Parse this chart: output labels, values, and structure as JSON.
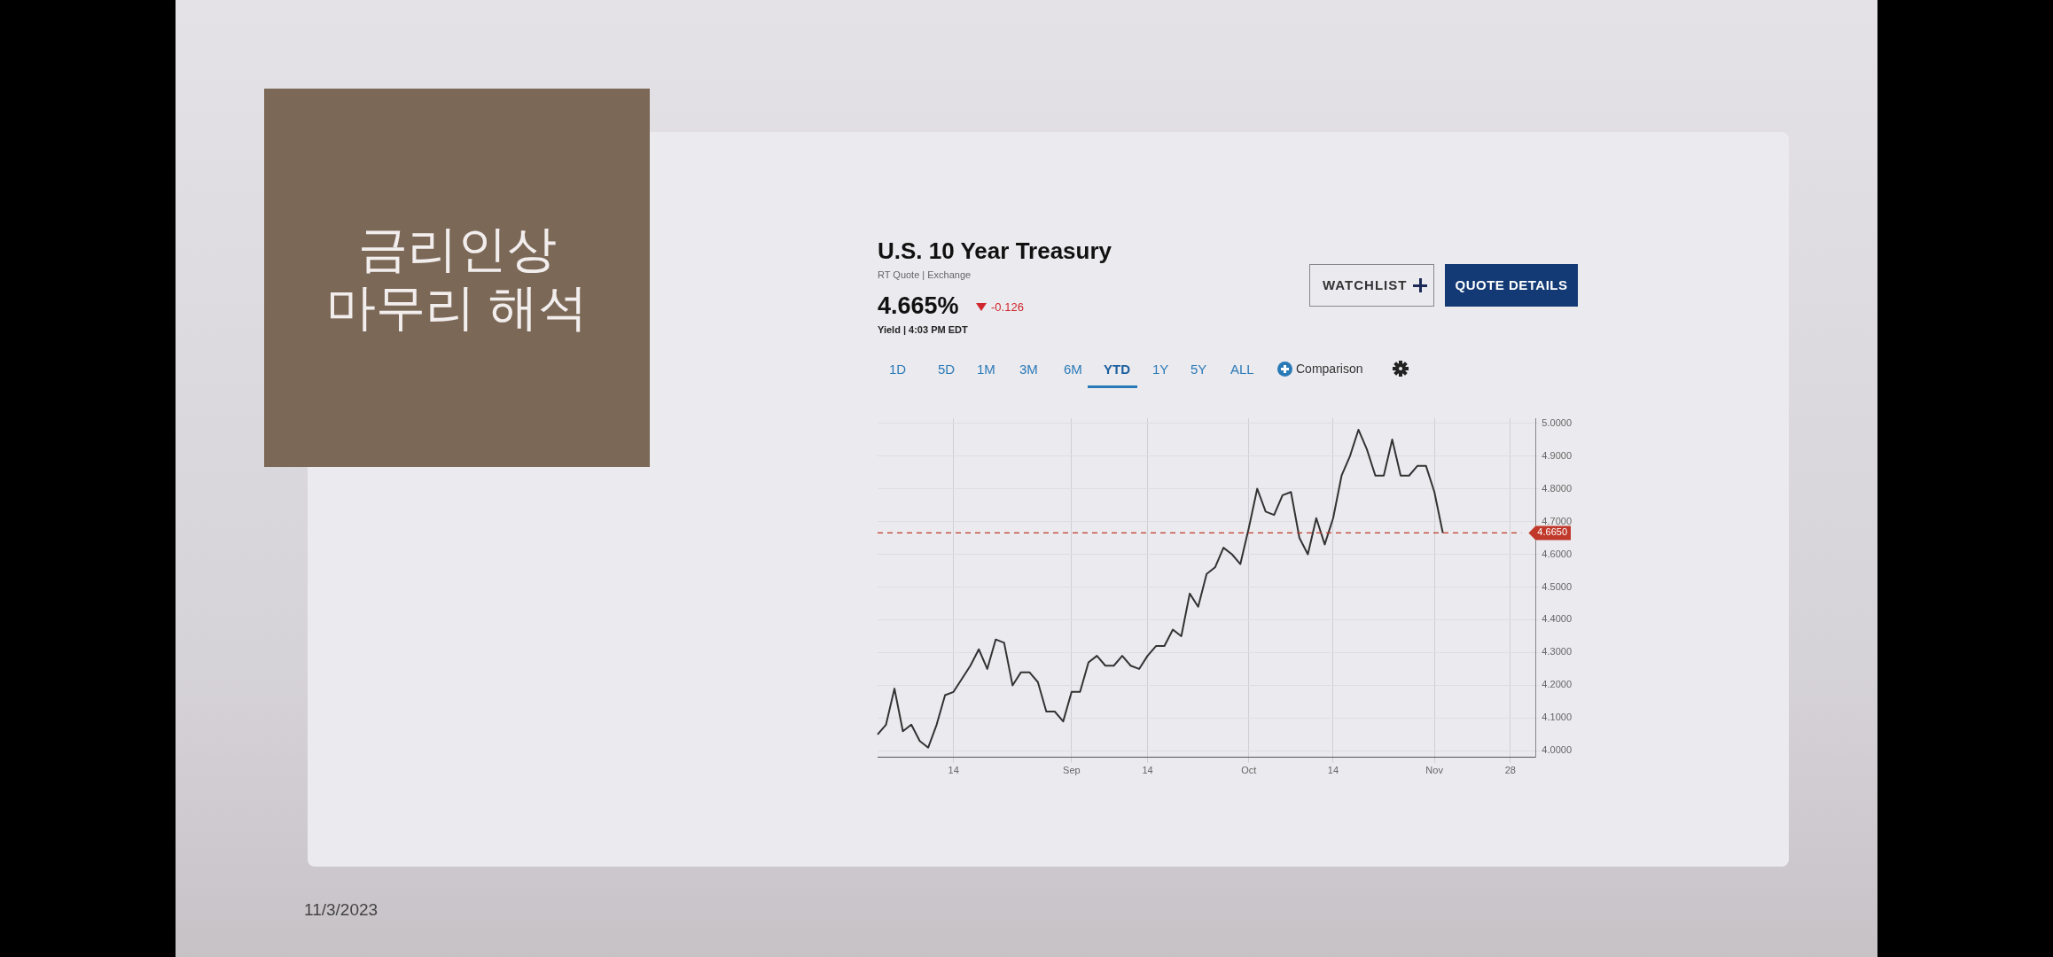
{
  "chart_data": {
    "type": "line",
    "title": "U.S. 10 Year Treasury",
    "subtitle": "RT Quote | Exchange",
    "categories": [
      null,
      null,
      null,
      null,
      null,
      null,
      null,
      null,
      null,
      "14",
      null,
      null,
      null,
      null,
      null,
      null,
      null,
      null,
      null,
      null,
      null,
      null,
      null,
      "Sep",
      null,
      null,
      null,
      null,
      null,
      null,
      null,
      null,
      "14",
      null,
      null,
      null,
      null,
      null,
      null,
      null,
      null,
      null,
      null,
      null,
      "Oct",
      null,
      null,
      null,
      null,
      null,
      null,
      null,
      null,
      null,
      "14",
      null,
      null,
      null,
      null,
      null,
      null,
      null,
      null,
      null,
      null,
      null,
      "Nov",
      null,
      null,
      null,
      null,
      null,
      null,
      null,
      null,
      "28",
      null,
      null,
      null
    ],
    "series": [
      {
        "color": "#333333",
        "values": [
          4.05,
          4.08,
          4.19,
          4.06,
          4.08,
          4.03,
          4.01,
          4.08,
          4.17,
          4.18,
          4.22,
          4.26,
          4.31,
          4.25,
          4.34,
          4.33,
          4.2,
          4.24,
          4.24,
          4.21,
          4.12,
          4.12,
          4.09,
          4.18,
          4.18,
          4.27,
          4.29,
          4.26,
          4.26,
          4.29,
          4.26,
          4.25,
          4.29,
          4.32,
          4.32,
          4.37,
          4.35,
          4.48,
          4.44,
          4.54,
          4.56,
          4.62,
          4.6,
          4.57,
          4.68,
          4.8,
          4.73,
          4.72,
          4.78,
          4.79,
          4.65,
          4.6,
          4.71,
          4.63,
          4.71,
          4.84,
          4.9,
          4.98,
          4.92,
          4.84,
          4.84,
          4.95,
          4.84,
          4.84,
          4.87,
          4.87,
          4.79,
          4.665,
          null,
          null,
          null,
          null,
          null,
          null,
          null,
          null,
          null,
          null,
          null
        ]
      }
    ],
    "ylim": [
      3.98,
      5.015
    ],
    "yticks": [
      {
        "value": 4,
        "label": "4.0000"
      },
      {
        "value": 4.1,
        "label": "4.1000"
      },
      {
        "value": 4.2,
        "label": "4.2000"
      },
      {
        "value": 4.3,
        "label": "4.3000"
      },
      {
        "value": 4.4,
        "label": "4.4000"
      },
      {
        "value": 4.5,
        "label": "4.5000"
      },
      {
        "value": 4.6,
        "label": "4.6000"
      },
      {
        "value": 4.7,
        "label": "4.7000"
      },
      {
        "value": 4.8,
        "label": "4.8000"
      },
      {
        "value": 4.9,
        "label": "4.9000"
      },
      {
        "value": 5,
        "label": "5.0000"
      }
    ],
    "ref_lines": [
      {
        "axis": "y",
        "value": 4.665,
        "label": "4.6650",
        "color": "#c0392b",
        "line_style": "dashed"
      }
    ],
    "grid": true,
    "legend": false,
    "marker": "none",
    "annotations": [
      "4.665%",
      "-0.126",
      "Yield | 4:03 PM EDT",
      "WATCHLIST",
      "QUOTE DETAILS",
      "1D",
      "5D",
      "1M",
      "3M",
      "6M",
      "YTD",
      "1Y",
      "5Y",
      "ALL",
      "Comparison",
      "금리인상\n마무리 해석",
      "11/3/2023"
    ]
  }
}
